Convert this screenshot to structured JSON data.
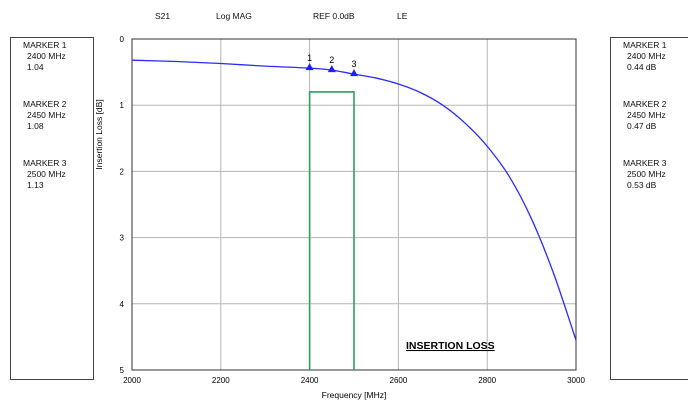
{
  "header": {
    "s_param": "S21",
    "format": "Log MAG",
    "ref": "REF 0.0dB",
    "le": "LE"
  },
  "left_markers": [
    {
      "label": "MARKER 1",
      "freq": "2400 MHz",
      "value": "1.04"
    },
    {
      "label": "MARKER 2",
      "freq": "2450 MHz",
      "value": "1.08"
    },
    {
      "label": "MARKER 3",
      "freq": "2500 MHz",
      "value": "1.13"
    }
  ],
  "right_markers": [
    {
      "label": "MARKER 1",
      "freq": "2400 MHz",
      "value": "0.44 dB"
    },
    {
      "label": "MARKER 2",
      "freq": "2450 MHz",
      "value": "0.47 dB"
    },
    {
      "label": "MARKER 3",
      "freq": "2500 MHz",
      "value": "0.53 dB"
    }
  ],
  "chart_data": {
    "type": "line",
    "xlabel": "Frequency [MHz]",
    "ylabel": "Insertion Loss [dB]",
    "xlim": [
      2000,
      3000
    ],
    "ylim": [
      0,
      5
    ],
    "y_inverted": true,
    "grid": true,
    "x_ticks": [
      2000,
      2200,
      2400,
      2600,
      2800,
      3000
    ],
    "y_ticks": [
      0,
      1,
      2,
      3,
      4,
      5
    ],
    "annotation": "INSERTION LOSS",
    "series": [
      {
        "color": "#2b2bff",
        "x": [
          2000,
          2100,
          2200,
          2300,
          2400,
          2450,
          2500,
          2550,
          2600,
          2650,
          2700,
          2750,
          2800,
          2850,
          2900,
          2950,
          3000
        ],
        "y": [
          0.32,
          0.34,
          0.37,
          0.41,
          0.44,
          0.47,
          0.53,
          0.59,
          0.68,
          0.81,
          1.0,
          1.27,
          1.62,
          2.08,
          2.72,
          3.55,
          4.55
        ]
      }
    ],
    "markers": [
      {
        "label": "1",
        "x": 2400,
        "y": 0.44
      },
      {
        "label": "2",
        "x": 2450,
        "y": 0.47
      },
      {
        "label": "3",
        "x": 2500,
        "y": 0.53
      }
    ],
    "spec_mask": {
      "color": "#2e9e5b",
      "x_start": 2400,
      "x_end": 2500,
      "y_top": 0.8,
      "y_bottom": 5
    }
  }
}
